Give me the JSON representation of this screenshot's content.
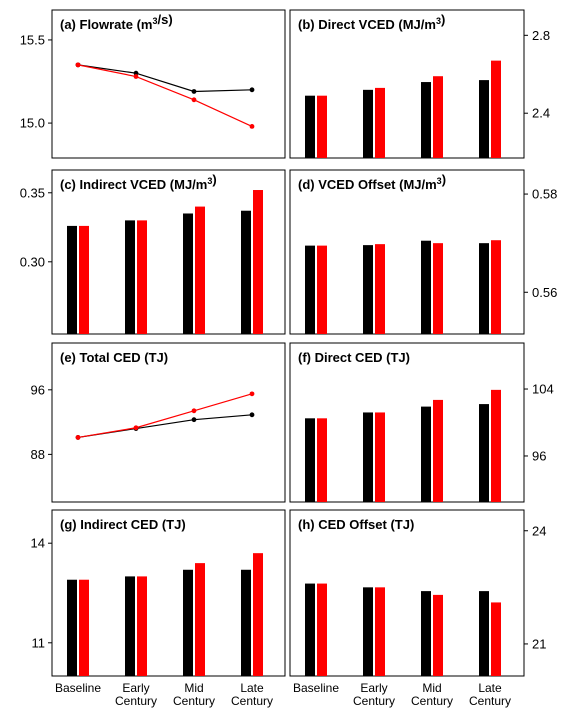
{
  "categories": [
    "Baseline",
    "Early Century",
    "Mid Century",
    "Late Century"
  ],
  "category_lines": [
    [
      "Baseline"
    ],
    [
      "Early",
      "Century"
    ],
    [
      "Mid",
      "Century"
    ],
    [
      "Late",
      "Century"
    ]
  ],
  "colors": {
    "series_a": "#000000",
    "series_b": "#ff0000"
  },
  "chart_data": [
    {
      "id": "a",
      "type": "line",
      "title": "(a) Flowrate (m³/s)",
      "ylim": [
        14.79,
        15.68
      ],
      "yticks": [
        "15.0",
        "15.5"
      ],
      "axis_side": "left",
      "categories": [
        "Baseline",
        "Early Century",
        "Mid Century",
        "Late Century"
      ],
      "series": [
        {
          "color": "#000000",
          "values": [
            15.35,
            15.3,
            15.19,
            15.2
          ]
        },
        {
          "color": "#ff0000",
          "values": [
            15.35,
            15.28,
            15.14,
            14.98
          ]
        }
      ]
    },
    {
      "id": "b",
      "type": "bar",
      "title": "(b) Direct VCED (MJ/m³)",
      "ylim": [
        2.17,
        2.93
      ],
      "yticks": [
        "2.4",
        "2.8"
      ],
      "axis_side": "right",
      "categories": [
        "Baseline",
        "Early Century",
        "Mid Century",
        "Late Century"
      ],
      "series": [
        {
          "color": "#000000",
          "values": [
            2.49,
            2.52,
            2.56,
            2.57
          ]
        },
        {
          "color": "#ff0000",
          "values": [
            2.49,
            2.53,
            2.59,
            2.67
          ]
        }
      ]
    },
    {
      "id": "c",
      "type": "bar",
      "title": "(c) Indirect VCED (MJ/m³)",
      "ylim": [
        0.2477,
        0.3665
      ],
      "yticks": [
        "0.30",
        "0.35"
      ],
      "axis_side": "left",
      "categories": [
        "Baseline",
        "Early Century",
        "Mid Century",
        "Late Century"
      ],
      "series": [
        {
          "color": "#000000",
          "values": [
            0.326,
            0.33,
            0.335,
            0.337
          ]
        },
        {
          "color": "#ff0000",
          "values": [
            0.326,
            0.33,
            0.34,
            0.352
          ]
        }
      ]
    },
    {
      "id": "d",
      "type": "bar",
      "title": "(d) VCED Offset (MJ/m³)",
      "ylim": [
        0.5515,
        0.5849
      ],
      "yticks": [
        "0.56",
        "0.58"
      ],
      "axis_side": "right",
      "categories": [
        "Baseline",
        "Early Century",
        "Mid Century",
        "Late Century"
      ],
      "series": [
        {
          "color": "#000000",
          "values": [
            0.5695,
            0.5696,
            0.5705,
            0.57
          ]
        },
        {
          "color": "#ff0000",
          "values": [
            0.5695,
            0.5698,
            0.57,
            0.5706
          ]
        }
      ]
    },
    {
      "id": "e",
      "type": "line",
      "title": "(e) Total CED (TJ)",
      "ylim": [
        82.1,
        101.8
      ],
      "yticks": [
        "88",
        "96"
      ],
      "axis_side": "left",
      "categories": [
        "Baseline",
        "Early Century",
        "Mid Century",
        "Late Century"
      ],
      "series": [
        {
          "color": "#000000",
          "values": [
            90.1,
            91.2,
            92.3,
            92.9
          ]
        },
        {
          "color": "#ff0000",
          "values": [
            90.1,
            91.3,
            93.4,
            95.5
          ]
        }
      ]
    },
    {
      "id": "f",
      "type": "bar",
      "title": "(f) Direct CED (TJ)",
      "ylim": [
        90.5,
        109.5
      ],
      "yticks": [
        "96",
        "104"
      ],
      "axis_side": "right",
      "categories": [
        "Baseline",
        "Early Century",
        "Mid Century",
        "Late Century"
      ],
      "series": [
        {
          "color": "#000000",
          "values": [
            100.5,
            101.2,
            101.9,
            102.2
          ]
        },
        {
          "color": "#ff0000",
          "values": [
            100.5,
            101.2,
            102.7,
            103.9
          ]
        }
      ]
    },
    {
      "id": "g",
      "type": "bar",
      "title": "(g) Indirect CED (TJ)",
      "ylim": [
        10.0,
        15.0
      ],
      "yticks": [
        "11",
        "14"
      ],
      "axis_side": "left",
      "categories": [
        "Baseline",
        "Early Century",
        "Mid Century",
        "Late Century"
      ],
      "series": [
        {
          "color": "#000000",
          "values": [
            12.9,
            13.0,
            13.2,
            13.2
          ]
        },
        {
          "color": "#ff0000",
          "values": [
            12.9,
            13.0,
            13.4,
            13.7
          ]
        }
      ]
    },
    {
      "id": "h",
      "type": "bar",
      "title": "(h) CED Offset (TJ)",
      "ylim": [
        20.15,
        24.55
      ],
      "yticks": [
        "21",
        "24"
      ],
      "axis_side": "right",
      "categories": [
        "Baseline",
        "Early Century",
        "Mid Century",
        "Late Century"
      ],
      "series": [
        {
          "color": "#000000",
          "values": [
            22.6,
            22.5,
            22.4,
            22.4
          ]
        },
        {
          "color": "#ff0000",
          "values": [
            22.6,
            22.5,
            22.3,
            22.1
          ]
        }
      ]
    }
  ]
}
